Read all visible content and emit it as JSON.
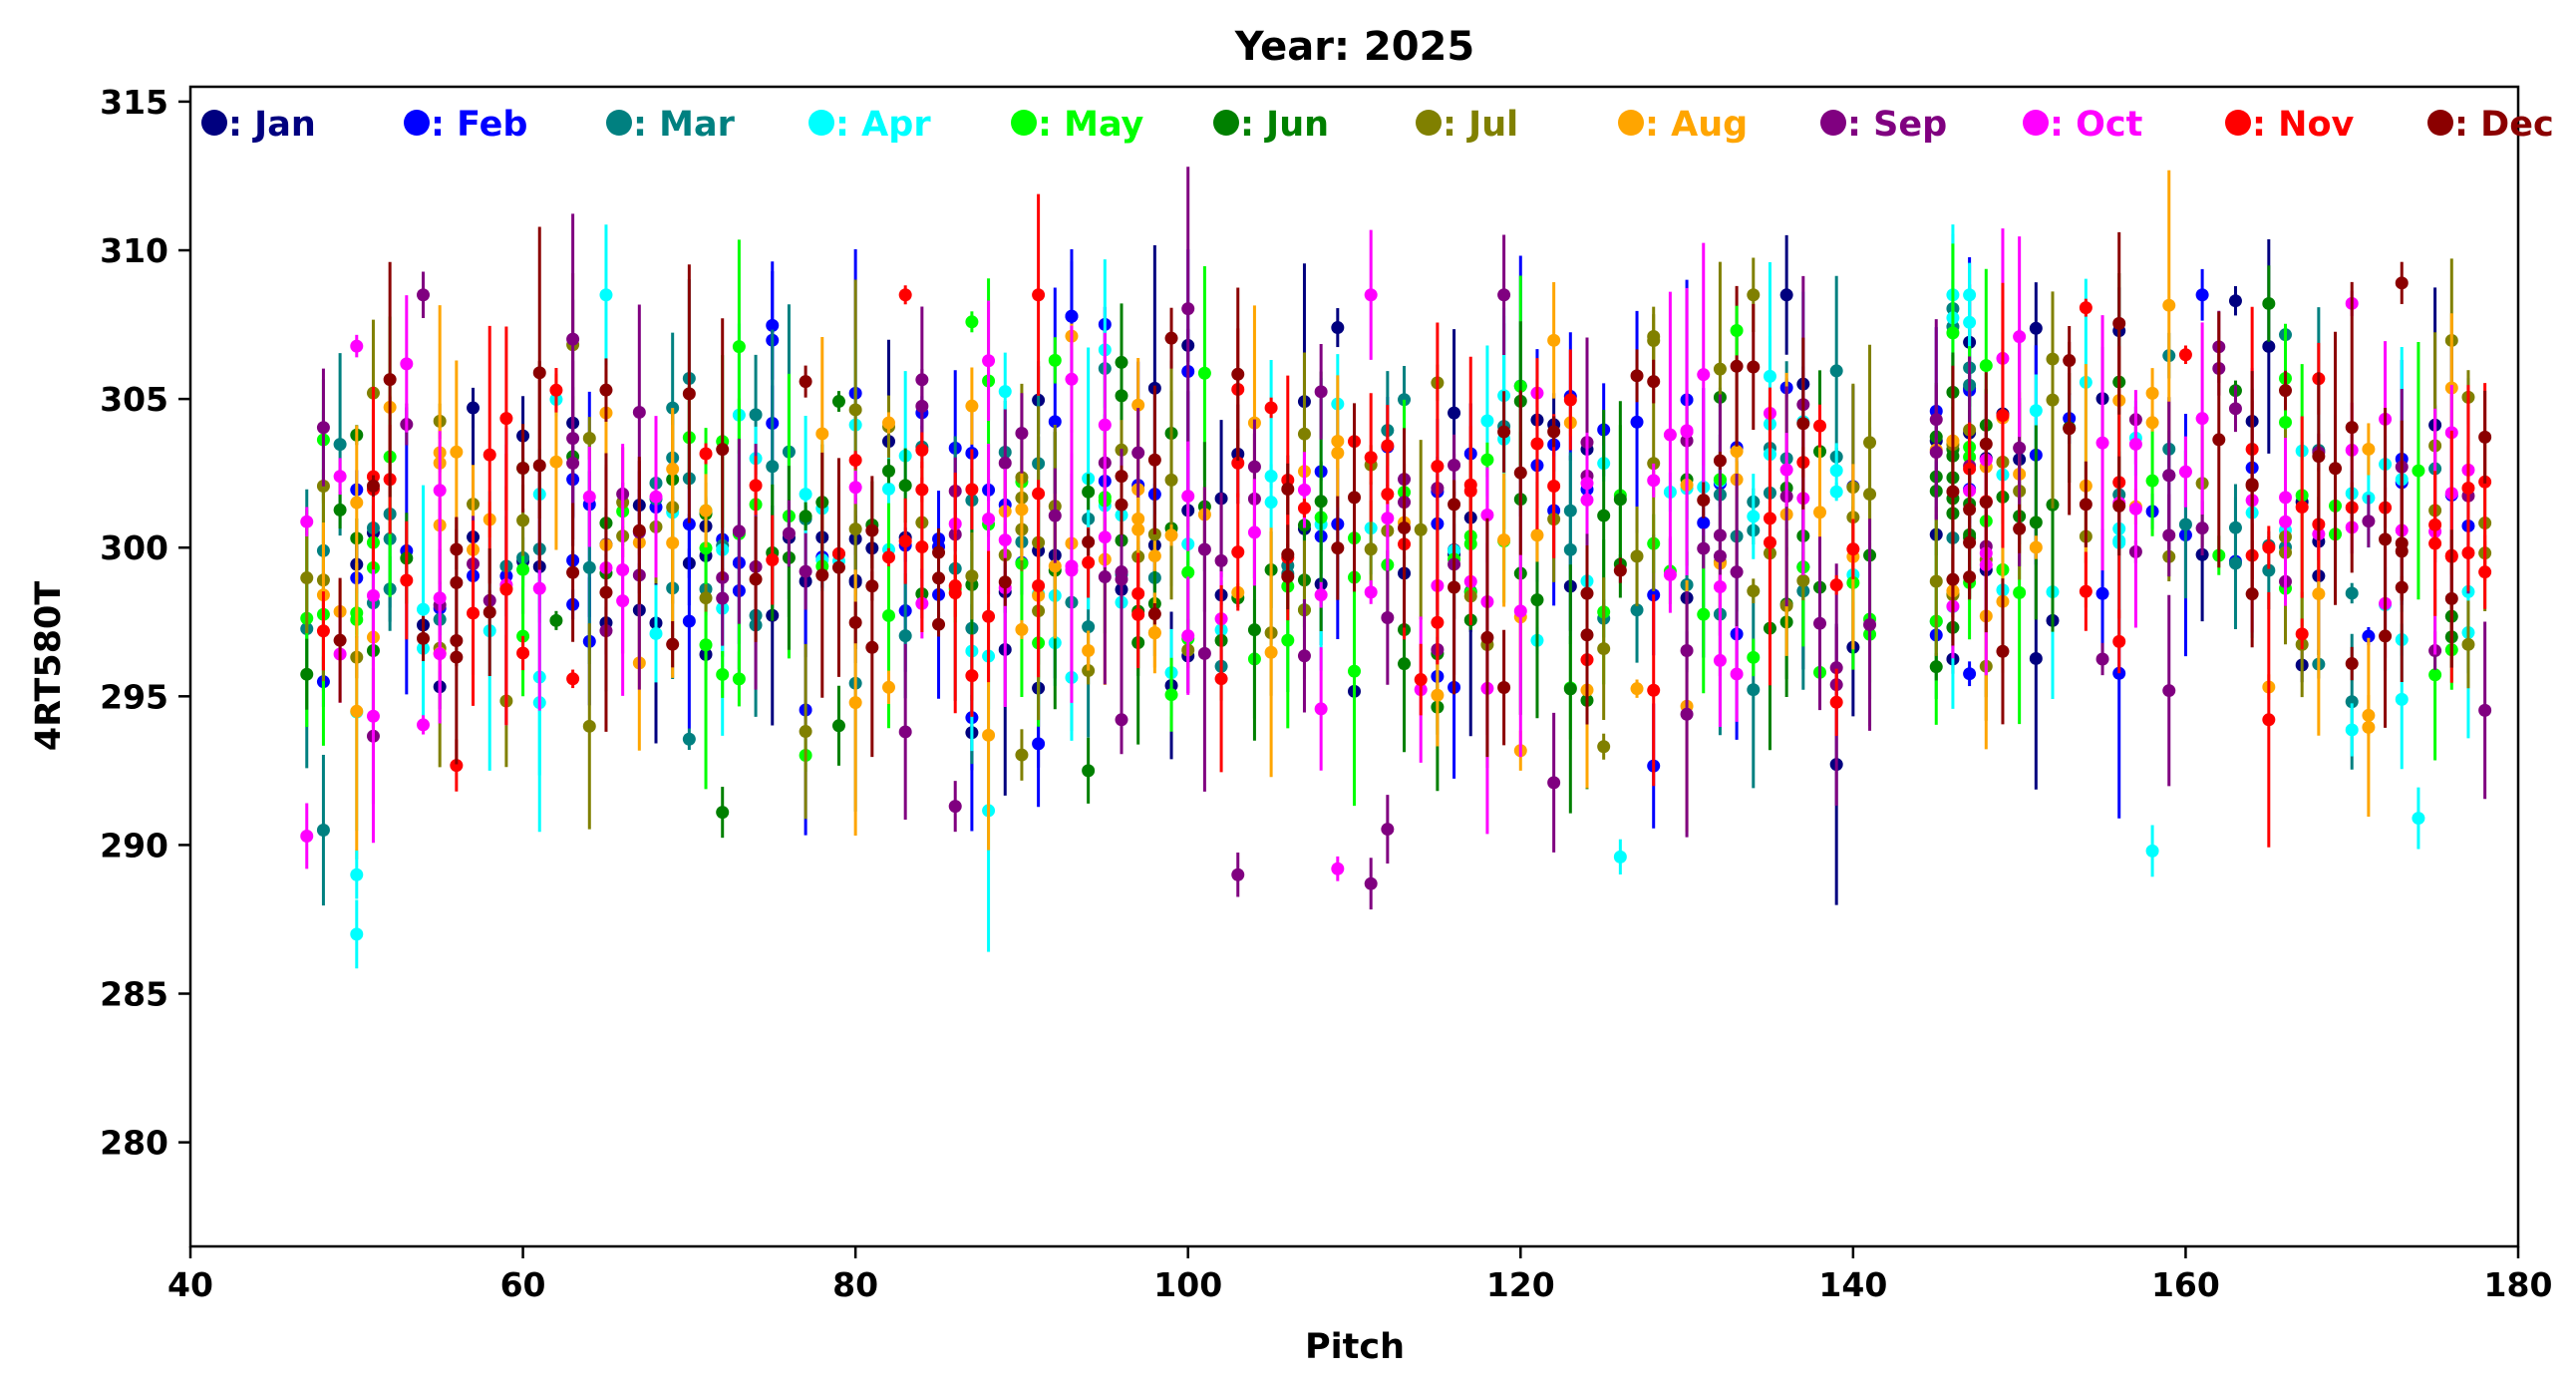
{
  "chart_data": {
    "type": "scatter",
    "title": "Year: 2025",
    "xlabel": "Pitch",
    "ylabel": "4RT580T",
    "xlim": [
      40,
      180
    ],
    "ylim": [
      276.5,
      315.5
    ],
    "xticks": [
      40,
      60,
      80,
      100,
      120,
      140,
      160,
      180
    ],
    "yticks": [
      280,
      285,
      290,
      295,
      300,
      305,
      310,
      315
    ],
    "grid": false,
    "legend_position": "top",
    "legend_labels": [
      ": Jan",
      ": Feb",
      ": Mar",
      ": Apr",
      ": May",
      ": Jun",
      ": Jul",
      ": Aug",
      ": Sep",
      ": Oct",
      ": Nov",
      ": Dec"
    ],
    "series": [
      {
        "name": "Jan",
        "color": "#00007f"
      },
      {
        "name": "Feb",
        "color": "#0000ff"
      },
      {
        "name": "Mar",
        "color": "#008080"
      },
      {
        "name": "Apr",
        "color": "#00ffff"
      },
      {
        "name": "May",
        "color": "#00ff00"
      },
      {
        "name": "Jun",
        "color": "#008000"
      },
      {
        "name": "Jul",
        "color": "#808000"
      },
      {
        "name": "Aug",
        "color": "#ffa500"
      },
      {
        "name": "Sep",
        "color": "#800080"
      },
      {
        "name": "Oct",
        "color": "#ff00ff"
      },
      {
        "name": "Nov",
        "color": "#ff0000"
      },
      {
        "name": "Dec",
        "color": "#8b0000"
      }
    ],
    "points_per_series": 90,
    "pitch_range": [
      47,
      178
    ],
    "missing_pitch_range": [
      142,
      144
    ],
    "approx_mean_value": 300.5,
    "approx_value_spread": 3.2,
    "approx_error_bar_range": [
      0.3,
      5
    ],
    "notable_outliers": [
      {
        "series": "Apr",
        "x": 50,
        "y": 287
      },
      {
        "series": "Apr",
        "x": 50,
        "y": 289
      },
      {
        "series": "Sep",
        "x": 103,
        "y": 289
      },
      {
        "series": "Sep",
        "x": 111,
        "y": 288.7
      },
      {
        "series": "Oct",
        "x": 109,
        "y": 289.2
      },
      {
        "series": "Apr",
        "x": 126,
        "y": 289.6
      },
      {
        "series": "Apr",
        "x": 158,
        "y": 289.8
      },
      {
        "series": "Apr",
        "x": 174,
        "y": 290.9
      },
      {
        "series": "Oct",
        "x": 47,
        "y": 290.3
      },
      {
        "series": "Sep",
        "x": 86,
        "y": 291.3
      },
      {
        "series": "Jan",
        "x": 163,
        "y": 308.3
      },
      {
        "series": "Dec",
        "x": 173,
        "y": 308.9
      },
      {
        "series": "Jan",
        "x": 109,
        "y": 307.4
      },
      {
        "series": "Jul",
        "x": 128,
        "y": 307.1
      },
      {
        "series": "May",
        "x": 133,
        "y": 307.3
      },
      {
        "series": "Dec",
        "x": 65,
        "y": 305.3
      },
      {
        "series": "Jan",
        "x": 57,
        "y": 304.7
      },
      {
        "series": "Jun",
        "x": 94,
        "y": 292.5
      },
      {
        "series": "Jun",
        "x": 72,
        "y": 291.1
      },
      {
        "series": "Nov",
        "x": 139,
        "y": 294.8
      }
    ]
  }
}
